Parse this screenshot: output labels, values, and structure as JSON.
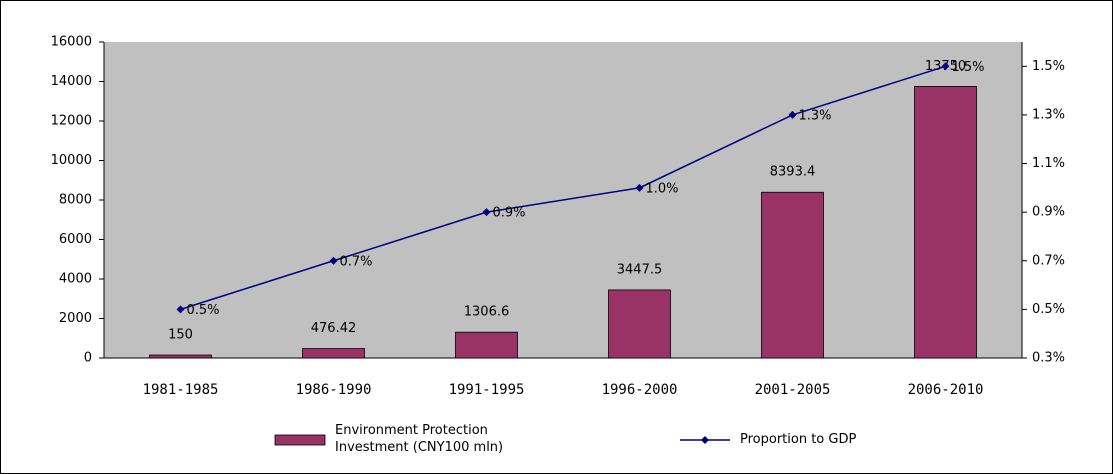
{
  "chart_data": {
    "type": "bar_line",
    "categories": [
      "1981-1985",
      "1986-1990",
      "1991-1995",
      "1996-2000",
      "2001-2005",
      "2006-2010"
    ],
    "series": [
      {
        "name": "Environment Protection Investment (CNY100 mln)",
        "type": "bar",
        "color": "#993366",
        "values": [
          150,
          476.42,
          1306.6,
          3447.5,
          8393.4,
          13750
        ]
      },
      {
        "name": "Proportion to GDP",
        "type": "line",
        "axis": "y2",
        "color": "#000080",
        "values": [
          0.5,
          0.7,
          0.9,
          1.0,
          1.3,
          1.5
        ],
        "value_labels": [
          "0.5%",
          "0.7%",
          "0.9%",
          "1.0%",
          "1.3%",
          "1.5%"
        ]
      }
    ],
    "ylim": [
      0,
      16000
    ],
    "yticks": [
      0,
      2000,
      4000,
      6000,
      8000,
      10000,
      12000,
      14000,
      16000
    ],
    "y2lim": [
      0.3,
      1.6
    ],
    "y2ticks": [
      {
        "value": 0.3,
        "label": "0.3%"
      },
      {
        "value": 0.5,
        "label": "0.5%"
      },
      {
        "value": 0.7,
        "label": "0.7%"
      },
      {
        "value": 0.9,
        "label": "0.9%"
      },
      {
        "value": 1.1,
        "label": "1.1%"
      },
      {
        "value": 1.3,
        "label": "1.3%"
      },
      {
        "value": 1.5,
        "label": "1.5%"
      }
    ],
    "legend": "bottom"
  }
}
